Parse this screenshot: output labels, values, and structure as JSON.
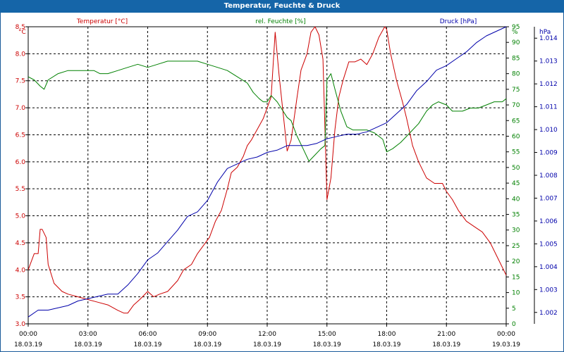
{
  "window": {
    "title": "Temperatur, Feuchte & Druck"
  },
  "colors": {
    "temperature": "#cc0000",
    "humidity": "#008000",
    "pressure": "#0000aa",
    "grid": "#000000",
    "titlebar": "#1565a8"
  },
  "chart_data": {
    "type": "line",
    "title": "Temperatur, Feuchte & Druck",
    "x_hours": [
      0,
      24
    ],
    "grid": true,
    "x_ticks": [
      {
        "h": 0,
        "time": "00:00",
        "date": "18.03.19"
      },
      {
        "h": 3,
        "time": "03:00",
        "date": "18.03.19"
      },
      {
        "h": 6,
        "time": "06:00",
        "date": "18.03.19"
      },
      {
        "h": 9,
        "time": "09:00",
        "date": "18.03.19"
      },
      {
        "h": 12,
        "time": "12:00",
        "date": "18.03.19"
      },
      {
        "h": 15,
        "time": "15:00",
        "date": "18.03.19"
      },
      {
        "h": 18,
        "time": "18:00",
        "date": "18.03.19"
      },
      {
        "h": 21,
        "time": "21:00",
        "date": "18.03.19"
      },
      {
        "h": 24,
        "time": "00:00",
        "date": "19.03.19"
      }
    ],
    "axes": {
      "temperature": {
        "label": "Temperatur [°C]",
        "unit": "°C",
        "min": 3.0,
        "max": 8.5,
        "ticks": [
          "3.0",
          "3.5",
          "4.0",
          "4.5",
          "5.0",
          "5.5",
          "6.0",
          "6.5",
          "7.0",
          "7.5",
          "8.0",
          "8.5"
        ]
      },
      "humidity": {
        "label": "rel. Feuchte [%]",
        "unit": "%",
        "min": 0,
        "max": 95,
        "ticks": [
          "0",
          "5",
          "10",
          "15",
          "20",
          "25",
          "30",
          "35",
          "40",
          "45",
          "50",
          "55",
          "60",
          "65",
          "70",
          "75",
          "80",
          "85",
          "90",
          "95"
        ]
      },
      "pressure": {
        "label": "Druck [hPa]",
        "unit": "hPa",
        "min": 1.0015,
        "max": 1.0145,
        "ticks": [
          "1.002",
          "1.003",
          "1.004",
          "1.005",
          "1.006",
          "1.007",
          "1.008",
          "1.009",
          "1.010",
          "1.011",
          "1.012",
          "1.013",
          "1.014"
        ]
      }
    },
    "series": [
      {
        "name": "Temperatur [°C]",
        "axis": "temperature",
        "x": [
          0,
          0.3,
          0.5,
          0.6,
          0.7,
          0.9,
          1.0,
          1.3,
          1.7,
          2.0,
          2.5,
          3.0,
          3.5,
          4.0,
          4.5,
          4.8,
          5.0,
          5.3,
          5.6,
          6.0,
          6.3,
          6.6,
          7.0,
          7.5,
          7.8,
          8.2,
          8.5,
          8.8,
          9.1,
          9.4,
          9.7,
          10.0,
          10.2,
          10.5,
          10.8,
          11.0,
          11.2,
          11.5,
          11.8,
          12.0,
          12.2,
          12.4,
          12.6,
          12.8,
          13.0,
          13.2,
          13.5,
          13.7,
          14.0,
          14.2,
          14.4,
          14.6,
          14.8,
          15.0,
          15.2,
          15.4,
          15.6,
          15.8,
          16.1,
          16.4,
          16.7,
          17.0,
          17.3,
          17.6,
          17.9,
          18.0,
          18.2,
          18.5,
          18.8,
          19.0,
          19.3,
          19.6,
          20.0,
          20.4,
          20.8,
          21.0,
          21.3,
          21.6,
          22.0,
          22.4,
          22.8,
          23.2,
          23.6,
          24.0
        ],
        "values": [
          4.0,
          4.3,
          4.3,
          4.75,
          4.75,
          4.6,
          4.1,
          3.75,
          3.6,
          3.55,
          3.5,
          3.45,
          3.4,
          3.35,
          3.25,
          3.2,
          3.2,
          3.35,
          3.45,
          3.6,
          3.5,
          3.55,
          3.6,
          3.8,
          4.0,
          4.1,
          4.3,
          4.45,
          4.6,
          4.9,
          5.1,
          5.5,
          5.8,
          5.9,
          6.1,
          6.3,
          6.4,
          6.6,
          6.8,
          7.0,
          7.2,
          8.4,
          7.6,
          6.9,
          6.2,
          6.4,
          7.2,
          7.7,
          8.0,
          8.4,
          8.5,
          8.35,
          7.9,
          5.3,
          5.7,
          6.6,
          7.2,
          7.5,
          7.85,
          7.85,
          7.9,
          7.8,
          8.0,
          8.3,
          8.5,
          8.45,
          8.0,
          7.5,
          7.1,
          6.8,
          6.3,
          6.0,
          5.7,
          5.6,
          5.6,
          5.45,
          5.3,
          5.1,
          4.9,
          4.8,
          4.7,
          4.5,
          4.2,
          3.9
        ]
      },
      {
        "name": "rel. Feuchte [%]",
        "axis": "humidity",
        "x": [
          0,
          0.3,
          0.6,
          0.8,
          1.0,
          1.5,
          2.0,
          2.5,
          3.0,
          3.3,
          3.6,
          4.0,
          4.5,
          5.0,
          5.5,
          6.0,
          6.5,
          7.0,
          7.5,
          8.0,
          8.5,
          9.0,
          9.5,
          10.0,
          10.5,
          11.0,
          11.3,
          11.6,
          11.8,
          12.0,
          12.2,
          12.5,
          12.8,
          13.0,
          13.2,
          13.5,
          13.8,
          14.1,
          14.4,
          14.7,
          14.9,
          15.0,
          15.2,
          15.4,
          15.7,
          16.0,
          16.3,
          16.6,
          17.0,
          17.4,
          17.8,
          18.0,
          18.3,
          18.7,
          19.0,
          19.3,
          19.6,
          20.0,
          20.3,
          20.6,
          21.0,
          21.3,
          21.5,
          21.8,
          22.2,
          22.6,
          23.0,
          23.4,
          23.8,
          24.0
        ],
        "values": [
          79,
          78,
          76,
          75,
          78,
          80,
          81,
          81,
          81,
          81,
          80,
          80,
          81,
          82,
          83,
          82,
          83,
          84,
          84,
          84,
          84,
          83,
          82,
          81,
          79,
          77,
          74,
          72,
          71,
          71,
          73,
          71,
          68,
          66,
          65,
          60,
          56,
          52,
          54,
          56,
          57,
          78,
          80,
          75,
          68,
          63,
          62,
          62,
          62,
          61,
          59,
          55,
          56,
          58,
          60,
          62,
          64,
          68,
          70,
          71,
          70,
          68,
          68,
          68,
          69,
          69,
          70,
          71,
          71,
          72
        ]
      },
      {
        "name": "Druck [hPa]",
        "axis": "pressure",
        "x": [
          0,
          0.5,
          1.0,
          1.5,
          2.0,
          2.5,
          3.0,
          3.5,
          4.0,
          4.5,
          5.0,
          5.5,
          6.0,
          6.5,
          7.0,
          7.5,
          8.0,
          8.5,
          9.0,
          9.5,
          10.0,
          10.5,
          11.0,
          11.5,
          12.0,
          12.5,
          13.0,
          13.5,
          14.0,
          14.5,
          15.0,
          15.5,
          16.0,
          16.5,
          17.0,
          17.5,
          18.0,
          18.5,
          19.0,
          19.5,
          20.0,
          20.5,
          21.0,
          21.5,
          22.0,
          22.5,
          23.0,
          23.5,
          24.0
        ],
        "values": [
          1.0018,
          1.0021,
          1.0021,
          1.0022,
          1.0023,
          1.0025,
          1.0026,
          1.0027,
          1.0028,
          1.0028,
          1.0032,
          1.0037,
          1.0043,
          1.0046,
          1.0051,
          1.0056,
          1.0062,
          1.0064,
          1.0069,
          1.0077,
          1.0083,
          1.0085,
          1.0087,
          1.0088,
          1.009,
          1.0091,
          1.0093,
          1.0093,
          1.0093,
          1.0094,
          1.0096,
          1.0097,
          1.0098,
          1.0098,
          1.0099,
          1.0101,
          1.0103,
          1.0107,
          1.0111,
          1.0117,
          1.0121,
          1.0126,
          1.0128,
          1.0131,
          1.0134,
          1.0138,
          1.0141,
          1.0143,
          1.0145
        ]
      }
    ]
  }
}
